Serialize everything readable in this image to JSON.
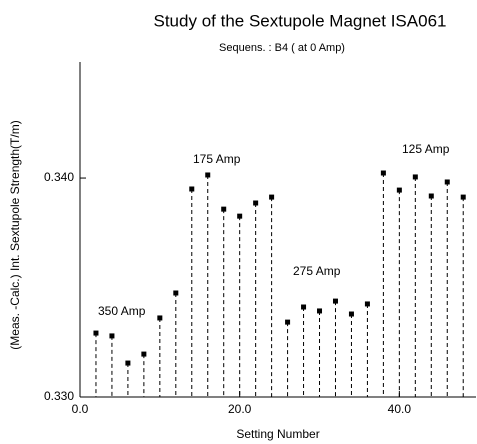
{
  "chart_data": {
    "type": "stem",
    "title": "Study of  the Sextupole Magnet ISA061",
    "subtitle": "Sequens. : B4 ( at 0 Amp)",
    "x_label": "Setting Number",
    "y_label": "(Meas. -Calc.) Int. Sextupole Strength(T/m)",
    "x": [
      2,
      4,
      6,
      8,
      10,
      12,
      14,
      16,
      18,
      20,
      22,
      24,
      26,
      28,
      30,
      32,
      34,
      36,
      38,
      40,
      42,
      44,
      46,
      48
    ],
    "values": [
      0.33292,
      0.33279,
      0.33155,
      0.33196,
      0.33361,
      0.33475,
      0.3395,
      0.34014,
      0.33858,
      0.33826,
      0.33886,
      0.33913,
      0.33342,
      0.33411,
      0.33393,
      0.33438,
      0.33379,
      0.33425,
      0.34023,
      0.33945,
      0.34005,
      0.33918,
      0.33982,
      0.33913
    ],
    "color": "#000000",
    "annotations": [
      "350 Amp",
      "175 Amp",
      "275 Amp",
      "125 Amp"
    ],
    "xlim": [
      0,
      49.6
    ],
    "ylim": [
      0.33,
      0.3453
    ],
    "xticks": [
      {
        "value": 0,
        "label": "0.0"
      },
      {
        "value": 20,
        "label": "20.0"
      },
      {
        "value": 40,
        "label": "40.0"
      }
    ],
    "yticks": [
      {
        "value": 0.33,
        "label": "0.330"
      },
      {
        "value": 0.34,
        "label": "0.340"
      }
    ]
  }
}
